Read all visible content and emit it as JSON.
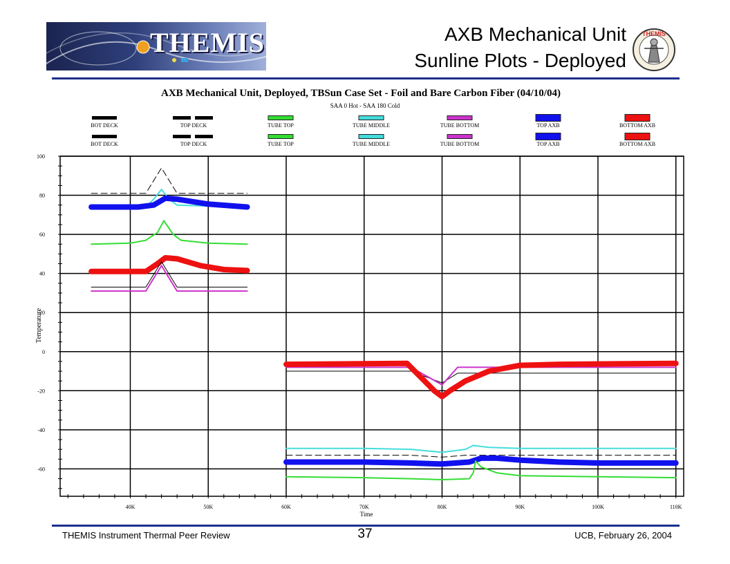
{
  "header": {
    "logo_text": "THEMIS",
    "title_line1": "AXB Mechanical Unit",
    "title_line2": "Sunline Plots - Deployed",
    "seal_text": "THEMIS"
  },
  "footer": {
    "left": "THEMIS Instrument Thermal Peer Review",
    "page": "37",
    "right": "UCB, February 26, 2004"
  },
  "colors": {
    "rule": "#1c2f8c",
    "bot_deck": "#000000",
    "top_deck": "#000000",
    "tube_top": "#33dd33",
    "tube_middle": "#44dddd",
    "tube_bottom": "#cc33cc",
    "top_axb": "#1111ee",
    "bottom_axb": "#ee1111"
  },
  "chart_data": {
    "type": "line",
    "title": "AXB Mechanical Unit, Deployed, TBSun Case Set - Foil and Bare Carbon Fiber  (04/10/04)",
    "subtitle": "SAA 0 Hot  -  SAA 180 Cold",
    "xlabel": "Time",
    "ylabel": "Temperature",
    "xlim": [
      31000,
      111000
    ],
    "ylim": [
      -74,
      100
    ],
    "yticks": [
      100,
      80,
      60,
      40,
      20,
      0,
      -20,
      -40,
      -60
    ],
    "ytick_labels": [
      "100",
      "80",
      "60",
      "40",
      "20",
      "0",
      "-20",
      "-40",
      "-60"
    ],
    "xticks": [
      40000,
      50000,
      60000,
      70000,
      80000,
      90000,
      100000,
      110000
    ],
    "xtick_labels": [
      "40K",
      "50K",
      "60K",
      "70K",
      "80K",
      "90K",
      "100K",
      "110K"
    ],
    "grid": true,
    "legend_position": "top",
    "legend_row1": [
      "BOT DECK",
      "TOP DECK",
      "TUBE TOP",
      "TUBE MIDDLE",
      "TUBE BOTTOM",
      "TOP AXB",
      "BOTTOM AXB"
    ],
    "legend_row2": [
      "BOT DECK",
      "TOP DECK",
      "TUBE TOP",
      "TUBE MIDDLE",
      "TUBE BOTTOM",
      "TOP AXB",
      "BOTTOM AXB"
    ],
    "series": [
      {
        "key": "top_deck_hot",
        "style": "dashed",
        "width": 1,
        "color": "#000000",
        "x": [
          35000,
          42000,
          44000,
          46000,
          55000
        ],
        "y": [
          81,
          81,
          94,
          81,
          81
        ]
      },
      {
        "key": "tube_middle_hot",
        "style": "solid",
        "width": 2,
        "color": "#44dddd",
        "x": [
          35000,
          42000,
          43000,
          44000,
          45000,
          46000,
          50000,
          55000
        ],
        "y": [
          74,
          74,
          78,
          83,
          78,
          75,
          74.5,
          74
        ]
      },
      {
        "key": "top_axb_hot",
        "style": "solid",
        "width": 8,
        "color": "#1111ee",
        "x": [
          35000,
          41000,
          43000,
          44500,
          46000,
          50000,
          55000
        ],
        "y": [
          74,
          74,
          75,
          78.5,
          78,
          75.5,
          74
        ]
      },
      {
        "key": "tube_top_hot",
        "style": "solid",
        "width": 2,
        "color": "#33dd33",
        "x": [
          35000,
          40000,
          42000,
          43500,
          44300,
          45500,
          46500,
          50000,
          55000
        ],
        "y": [
          55,
          55.5,
          57,
          61,
          67,
          60,
          57,
          55.5,
          55
        ]
      },
      {
        "key": "bottom_axb_hot",
        "style": "solid",
        "width": 8,
        "color": "#ee1111",
        "x": [
          35000,
          42000,
          43500,
          44500,
          46000,
          49000,
          52000,
          55000
        ],
        "y": [
          41,
          41,
          45,
          48,
          47.5,
          44,
          42,
          41.5
        ]
      },
      {
        "key": "bot_deck_hot",
        "style": "solid",
        "width": 1,
        "color": "#000000",
        "x": [
          35000,
          42000,
          44000,
          46000,
          55000
        ],
        "y": [
          33,
          33,
          46,
          33,
          33
        ]
      },
      {
        "key": "tube_bottom_hot",
        "style": "solid",
        "width": 2,
        "color": "#cc33cc",
        "x": [
          35000,
          42000,
          44000,
          46000,
          55000
        ],
        "y": [
          31,
          31,
          44,
          31,
          31
        ]
      },
      {
        "key": "bot_deck_cold",
        "style": "solid",
        "width": 1,
        "color": "#000000",
        "x": [
          60000,
          76000,
          80000,
          82000,
          110000
        ],
        "y": [
          -10,
          -10,
          -16,
          -11,
          -11
        ]
      },
      {
        "key": "tube_bottom_cold",
        "style": "solid",
        "width": 2,
        "color": "#cc33cc",
        "x": [
          60000,
          76000,
          80000,
          82000,
          90000,
          110000
        ],
        "y": [
          -8,
          -8,
          -17,
          -8,
          -8,
          -8
        ]
      },
      {
        "key": "bottom_axb_cold",
        "style": "solid",
        "width": 8,
        "color": "#ee1111",
        "x": [
          60000,
          75500,
          77000,
          79000,
          80000,
          81000,
          83000,
          86000,
          90000,
          95000,
          110000
        ],
        "y": [
          -6.5,
          -6,
          -12,
          -20,
          -23,
          -20,
          -15,
          -10,
          -7,
          -6.5,
          -6
        ]
      },
      {
        "key": "tube_middle_cold",
        "style": "solid",
        "width": 2,
        "color": "#44dddd",
        "x": [
          60000,
          70000,
          76000,
          80000,
          83000,
          84000,
          86000,
          90000,
          100000,
          110000
        ],
        "y": [
          -49.5,
          -49.5,
          -50,
          -51.5,
          -50,
          -48,
          -49,
          -49.5,
          -49.5,
          -49.5
        ]
      },
      {
        "key": "top_deck_cold",
        "style": "dashed",
        "width": 1,
        "color": "#000000",
        "x": [
          60000,
          76000,
          80000,
          83000,
          110000
        ],
        "y": [
          -53,
          -53,
          -54,
          -53,
          -53
        ]
      },
      {
        "key": "top_axb_cold",
        "style": "solid",
        "width": 8,
        "color": "#1111ee",
        "x": [
          60000,
          70000,
          76000,
          80000,
          83500,
          85000,
          87000,
          90000,
          95000,
          100000,
          110000
        ],
        "y": [
          -56.5,
          -56.5,
          -57,
          -57.5,
          -56.5,
          -54.5,
          -54.5,
          -55.5,
          -56.5,
          -57,
          -57
        ]
      },
      {
        "key": "tube_top_cold",
        "style": "solid",
        "width": 2,
        "color": "#33dd33",
        "x": [
          60000,
          70000,
          76000,
          80000,
          83500,
          84000,
          84300,
          85000,
          87000,
          90000,
          100000,
          110000
        ],
        "y": [
          -64,
          -64.5,
          -65,
          -65.5,
          -65,
          -62,
          -56,
          -59,
          -62,
          -63.5,
          -64,
          -64.5
        ]
      }
    ]
  }
}
